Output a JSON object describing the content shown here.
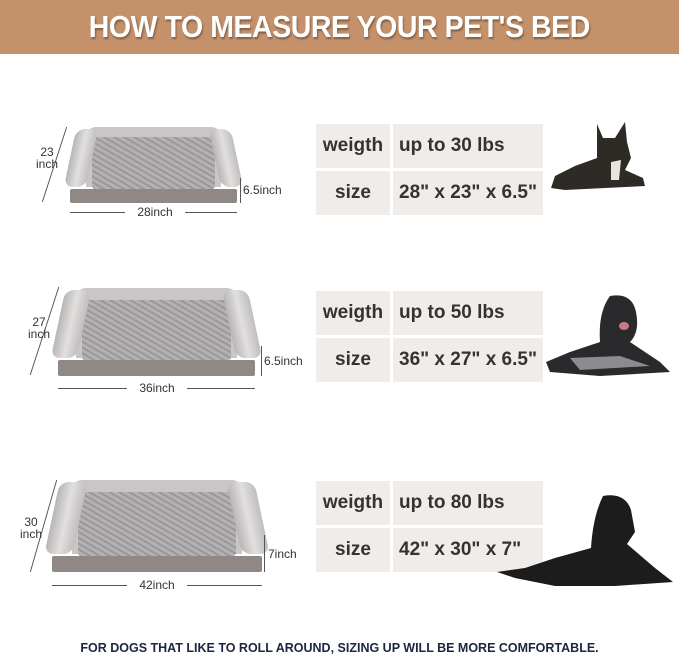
{
  "title": "HOW TO MEASURE YOUR PET'S BED",
  "beds": [
    {
      "length": "28inch",
      "width": "23",
      "width_unit": "inch",
      "height": "6.5inch",
      "weight_label": "weigth",
      "weight": "up to 30 lbs",
      "size_label": "size",
      "size": "28\" x 23\" x 6.5\""
    },
    {
      "length": "36inch",
      "width": "27",
      "width_unit": "inch",
      "height": "6.5inch",
      "weight_label": "weigth",
      "weight": "up to 50 lbs",
      "size_label": "size",
      "size": "36\" x 27\" x 6.5\""
    },
    {
      "length": "42inch",
      "width": "30",
      "width_unit": "inch",
      "height": "7inch",
      "weight_label": "weigth",
      "weight": "up to 80 lbs",
      "size_label": "size",
      "size": "42\" x 30\" x 7\""
    }
  ],
  "footer": "FOR DOGS THAT LIKE TO ROLL AROUND, SIZING UP WILL BE MORE COMFORTABLE.",
  "colors": {
    "banner": "#c4916b",
    "table_cell": "#efecea",
    "footer_text": "#1d2540"
  }
}
